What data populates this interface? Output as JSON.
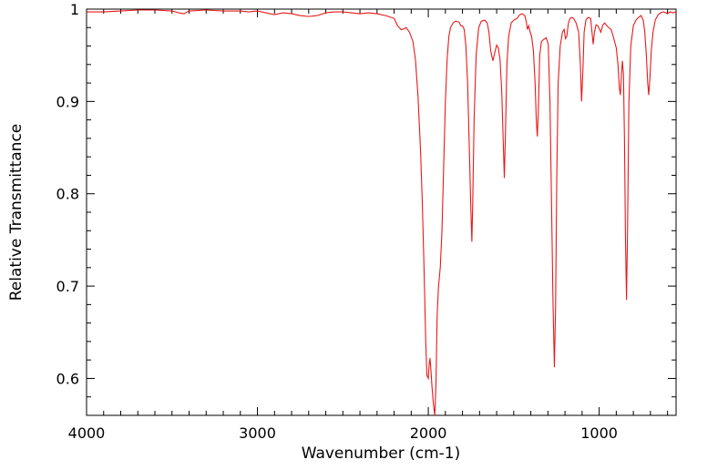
{
  "chart_data": {
    "type": "line",
    "title": "",
    "xlabel": "Wavenumber (cm-1)",
    "ylabel": "Relative Transmittance",
    "xlim": [
      4000,
      550
    ],
    "ylim": [
      0.56,
      1.0
    ],
    "x_reversed": true,
    "grid": false,
    "legend": "none",
    "x_ticks": [
      4000,
      3000,
      2000,
      1000
    ],
    "x_tick_labels": [
      "4000",
      "3000",
      "2000",
      "1000"
    ],
    "y_ticks": [
      0.6,
      0.7,
      0.8,
      0.9,
      1.0
    ],
    "y_tick_labels": [
      "0.6",
      "0.7",
      "0.8",
      "0.9",
      "1"
    ],
    "series": [
      {
        "color": "#e8191a",
        "points": [
          [
            4000,
            0.997
          ],
          [
            3900,
            0.997
          ],
          [
            3800,
            0.998
          ],
          [
            3700,
            0.999
          ],
          [
            3600,
            0.999
          ],
          [
            3500,
            0.998
          ],
          [
            3460,
            0.996
          ],
          [
            3430,
            0.995
          ],
          [
            3400,
            0.998
          ],
          [
            3300,
            0.999
          ],
          [
            3200,
            0.998
          ],
          [
            3100,
            0.998
          ],
          [
            3050,
            0.997
          ],
          [
            3000,
            0.998
          ],
          [
            2950,
            0.996
          ],
          [
            2900,
            0.994
          ],
          [
            2850,
            0.996
          ],
          [
            2800,
            0.995
          ],
          [
            2750,
            0.993
          ],
          [
            2700,
            0.992
          ],
          [
            2650,
            0.993
          ],
          [
            2600,
            0.996
          ],
          [
            2550,
            0.997
          ],
          [
            2500,
            0.997
          ],
          [
            2450,
            0.996
          ],
          [
            2400,
            0.995
          ],
          [
            2350,
            0.996
          ],
          [
            2300,
            0.995
          ],
          [
            2250,
            0.993
          ],
          [
            2200,
            0.99
          ],
          [
            2180,
            0.982
          ],
          [
            2160,
            0.978
          ],
          [
            2150,
            0.978
          ],
          [
            2130,
            0.98
          ],
          [
            2110,
            0.975
          ],
          [
            2090,
            0.965
          ],
          [
            2075,
            0.945
          ],
          [
            2060,
            0.905
          ],
          [
            2045,
            0.845
          ],
          [
            2035,
            0.79
          ],
          [
            2025,
            0.72
          ],
          [
            2015,
            0.64
          ],
          [
            2008,
            0.603
          ],
          [
            2000,
            0.6
          ],
          [
            1995,
            0.615
          ],
          [
            1990,
            0.622
          ],
          [
            1985,
            0.61
          ],
          [
            1978,
            0.59
          ],
          [
            1970,
            0.572
          ],
          [
            1962,
            0.558
          ],
          [
            1955,
            0.595
          ],
          [
            1948,
            0.67
          ],
          [
            1940,
            0.7
          ],
          [
            1930,
            0.72
          ],
          [
            1920,
            0.76
          ],
          [
            1910,
            0.83
          ],
          [
            1900,
            0.9
          ],
          [
            1890,
            0.945
          ],
          [
            1880,
            0.97
          ],
          [
            1870,
            0.98
          ],
          [
            1855,
            0.985
          ],
          [
            1840,
            0.987
          ],
          [
            1820,
            0.986
          ],
          [
            1810,
            0.982
          ],
          [
            1800,
            0.982
          ],
          [
            1790,
            0.978
          ],
          [
            1780,
            0.96
          ],
          [
            1770,
            0.92
          ],
          [
            1760,
            0.85
          ],
          [
            1752,
            0.79
          ],
          [
            1745,
            0.748
          ],
          [
            1740,
            0.79
          ],
          [
            1732,
            0.88
          ],
          [
            1720,
            0.95
          ],
          [
            1705,
            0.98
          ],
          [
            1690,
            0.987
          ],
          [
            1670,
            0.988
          ],
          [
            1655,
            0.985
          ],
          [
            1645,
            0.975
          ],
          [
            1635,
            0.955
          ],
          [
            1622,
            0.944
          ],
          [
            1612,
            0.952
          ],
          [
            1600,
            0.961
          ],
          [
            1590,
            0.958
          ],
          [
            1580,
            0.945
          ],
          [
            1570,
            0.91
          ],
          [
            1562,
            0.86
          ],
          [
            1555,
            0.817
          ],
          [
            1548,
            0.87
          ],
          [
            1540,
            0.94
          ],
          [
            1530,
            0.97
          ],
          [
            1515,
            0.985
          ],
          [
            1500,
            0.988
          ],
          [
            1480,
            0.99
          ],
          [
            1465,
            0.994
          ],
          [
            1450,
            0.995
          ],
          [
            1435,
            0.993
          ],
          [
            1425,
            0.985
          ],
          [
            1420,
            0.978
          ],
          [
            1412,
            0.982
          ],
          [
            1405,
            0.976
          ],
          [
            1395,
            0.97
          ],
          [
            1385,
            0.955
          ],
          [
            1375,
            0.92
          ],
          [
            1368,
            0.88
          ],
          [
            1362,
            0.862
          ],
          [
            1356,
            0.89
          ],
          [
            1348,
            0.95
          ],
          [
            1338,
            0.965
          ],
          [
            1325,
            0.967
          ],
          [
            1310,
            0.969
          ],
          [
            1298,
            0.962
          ],
          [
            1288,
            0.9
          ],
          [
            1278,
            0.78
          ],
          [
            1270,
            0.68
          ],
          [
            1262,
            0.612
          ],
          [
            1255,
            0.68
          ],
          [
            1248,
            0.82
          ],
          [
            1240,
            0.92
          ],
          [
            1228,
            0.96
          ],
          [
            1215,
            0.975
          ],
          [
            1205,
            0.978
          ],
          [
            1197,
            0.968
          ],
          [
            1190,
            0.97
          ],
          [
            1180,
            0.985
          ],
          [
            1170,
            0.99
          ],
          [
            1160,
            0.991
          ],
          [
            1150,
            0.99
          ],
          [
            1135,
            0.985
          ],
          [
            1120,
            0.975
          ],
          [
            1110,
            0.94
          ],
          [
            1103,
            0.9
          ],
          [
            1096,
            0.93
          ],
          [
            1088,
            0.975
          ],
          [
            1078,
            0.988
          ],
          [
            1065,
            0.991
          ],
          [
            1050,
            0.99
          ],
          [
            1042,
            0.975
          ],
          [
            1035,
            0.962
          ],
          [
            1028,
            0.975
          ],
          [
            1018,
            0.983
          ],
          [
            1008,
            0.982
          ],
          [
            998,
            0.978
          ],
          [
            990,
            0.975
          ],
          [
            978,
            0.983
          ],
          [
            968,
            0.985
          ],
          [
            955,
            0.982
          ],
          [
            945,
            0.98
          ],
          [
            930,
            0.978
          ],
          [
            920,
            0.972
          ],
          [
            910,
            0.965
          ],
          [
            900,
            0.958
          ],
          [
            890,
            0.94
          ],
          [
            882,
            0.915
          ],
          [
            876,
            0.907
          ],
          [
            870,
            0.928
          ],
          [
            864,
            0.944
          ],
          [
            858,
            0.93
          ],
          [
            852,
            0.86
          ],
          [
            846,
            0.75
          ],
          [
            840,
            0.685
          ],
          [
            834,
            0.76
          ],
          [
            826,
            0.9
          ],
          [
            815,
            0.96
          ],
          [
            800,
            0.982
          ],
          [
            785,
            0.988
          ],
          [
            770,
            0.991
          ],
          [
            755,
            0.993
          ],
          [
            742,
            0.988
          ],
          [
            733,
            0.975
          ],
          [
            724,
            0.95
          ],
          [
            716,
            0.92
          ],
          [
            710,
            0.907
          ],
          [
            703,
            0.925
          ],
          [
            695,
            0.955
          ],
          [
            685,
            0.975
          ],
          [
            672,
            0.988
          ],
          [
            655,
            0.994
          ],
          [
            640,
            0.996
          ],
          [
            625,
            0.997
          ],
          [
            610,
            0.996
          ],
          [
            600,
            0.995
          ],
          [
            585,
            0.997
          ],
          [
            570,
            0.996
          ],
          [
            550,
            0.997
          ]
        ]
      }
    ]
  }
}
